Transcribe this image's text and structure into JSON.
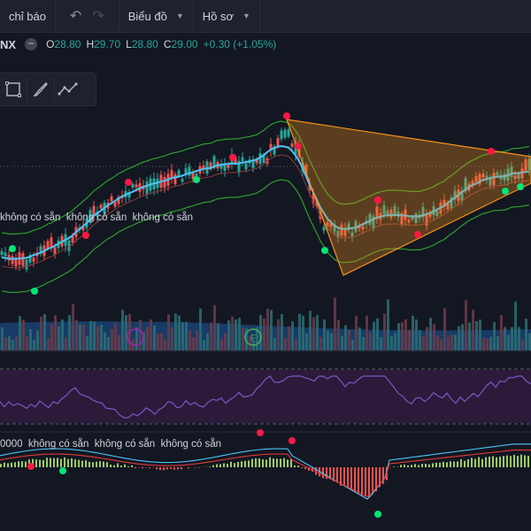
{
  "toolbar": {
    "indicators_label": "chỉ báo",
    "chart_label": "Biểu đồ",
    "profile_label": "Hồ sơ"
  },
  "legend": {
    "symbol": "NX",
    "open_key": "O",
    "open": "28.80",
    "high_key": "H",
    "high": "29.70",
    "low_key": "L",
    "low": "28.80",
    "close_key": "C",
    "close": "29.00",
    "change": "+0.30 (+1.05%)"
  },
  "overlays": {
    "na_text_1": "không có sẵn",
    "na_text_2": "không có sẵn",
    "na_text_3": "không có sẵn",
    "macd_value": "0000",
    "macd_na_1": "không có sẵn",
    "macd_na_2": "không có sẵn",
    "macd_na_3": "không có sẵn"
  },
  "colors": {
    "background": "#131722",
    "up": "#26a69a",
    "down": "#ef5350",
    "bollinger": "#2e9e2e",
    "ma": "#4fc3f7",
    "pattern": "#f7931a",
    "rsi_band": "#2b1a3a"
  },
  "icons": [
    "undo-icon",
    "redo-icon",
    "chevron-down-icon",
    "rectangle-icon",
    "brush-icon",
    "path-icon"
  ]
}
